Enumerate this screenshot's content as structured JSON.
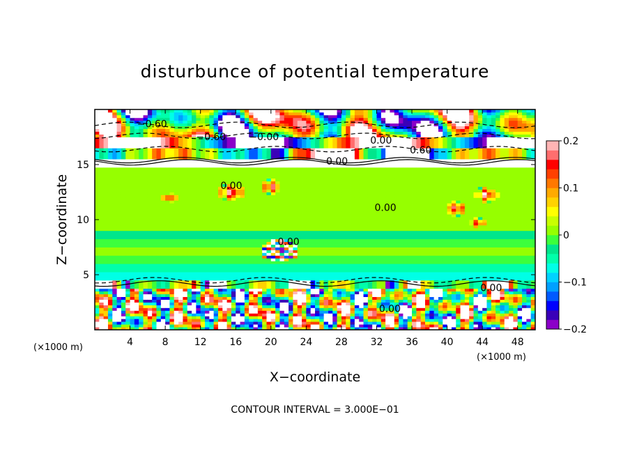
{
  "chart_data": {
    "type": "heatmap",
    "title": "disturbunce of potential temperature",
    "xlabel": "X−coordinate",
    "ylabel": "Z−coordinate",
    "x_unit": "(×1000 m)",
    "footer": "CONTOUR INTERVAL = 3.000E−01",
    "xlim": [
      0,
      50
    ],
    "ylim": [
      0,
      20
    ],
    "x_ticks": [
      "4",
      "8",
      "12",
      "16",
      "20",
      "24",
      "28",
      "32",
      "36",
      "40",
      "44",
      "48"
    ],
    "x_tick_values": [
      4,
      8,
      12,
      16,
      20,
      24,
      28,
      32,
      36,
      40,
      44,
      48
    ],
    "y_ticks": [
      "5",
      "10",
      "15"
    ],
    "y_tick_values": [
      5,
      10,
      15
    ],
    "colorbar": {
      "range": [
        -0.2,
        0.2
      ],
      "tick_labels": [
        "0.2",
        "0.1",
        "0",
        "−0.1",
        "−0.2"
      ],
      "tick_values": [
        0.2,
        0.1,
        0,
        -0.1,
        -0.2
      ],
      "colors": [
        "#8b00c8",
        "#3a00b8",
        "#0000ff",
        "#005aff",
        "#00a0ff",
        "#00d2ff",
        "#00ffe6",
        "#00ffaa",
        "#00e68c",
        "#3cff3c",
        "#96ff00",
        "#c8ff00",
        "#ffff00",
        "#ffd200",
        "#ffaa00",
        "#ff7800",
        "#ff4000",
        "#ff0000",
        "#ff6e6e",
        "#ffb4b4"
      ]
    },
    "contour_labels": [
      {
        "text": "−0.60",
        "x": 6.5,
        "z": 18.4
      },
      {
        "text": "−0.60",
        "x": 13.2,
        "z": 17.2
      },
      {
        "text": "−0.00",
        "x": 19.2,
        "z": 17.2
      },
      {
        "text": "0.00",
        "x": 32.5,
        "z": 16.9
      },
      {
        "text": "0.60",
        "x": 37.0,
        "z": 16.0
      },
      {
        "text": "0.00",
        "x": 27.5,
        "z": 15.0
      },
      {
        "text": "0.00",
        "x": 15.5,
        "z": 12.8
      },
      {
        "text": "0.00",
        "x": 33.0,
        "z": 10.8
      },
      {
        "text": "0.00",
        "x": 22.0,
        "z": 7.7
      },
      {
        "text": "0.00",
        "x": 33.5,
        "z": 1.6
      },
      {
        "text": "0.00",
        "x": 45.0,
        "z": 3.5
      }
    ]
  }
}
